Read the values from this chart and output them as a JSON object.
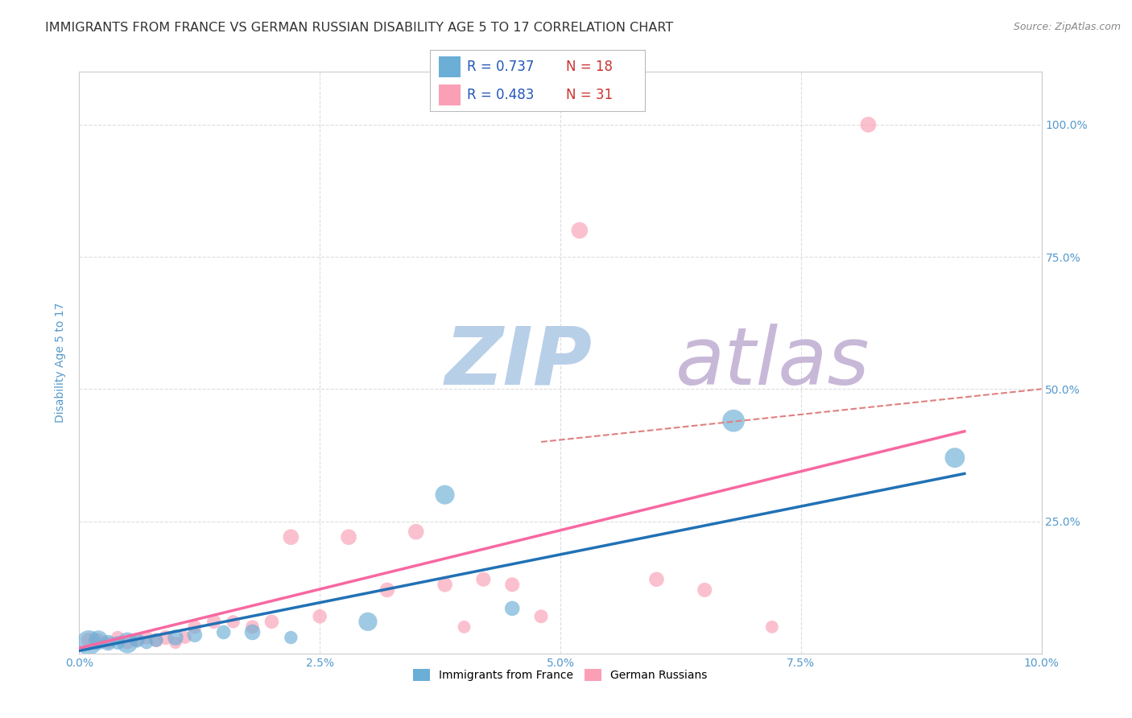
{
  "title": "IMMIGRANTS FROM FRANCE VS GERMAN RUSSIAN DISABILITY AGE 5 TO 17 CORRELATION CHART",
  "source": "Source: ZipAtlas.com",
  "ylabel": "Disability Age 5 to 17",
  "xlim": [
    0.0,
    0.1
  ],
  "ylim": [
    0.0,
    1.1
  ],
  "xtick_labels": [
    "0.0%",
    "2.5%",
    "5.0%",
    "7.5%",
    "10.0%"
  ],
  "xtick_vals": [
    0.0,
    0.025,
    0.05,
    0.075,
    0.1
  ],
  "ytick_labels": [
    "25.0%",
    "50.0%",
    "75.0%",
    "100.0%"
  ],
  "ytick_vals": [
    0.25,
    0.5,
    0.75,
    1.0
  ],
  "blue_color": "#6baed6",
  "pink_color": "#fa9fb5",
  "blue_line_color": "#2171b5",
  "pink_line_color": "#f768a1",
  "legend_r_blue": "R = 0.737",
  "legend_n_blue": "N = 18",
  "legend_r_pink": "R = 0.483",
  "legend_n_pink": "N = 31",
  "blue_scatter_x": [
    0.001,
    0.002,
    0.003,
    0.004,
    0.005,
    0.006,
    0.007,
    0.008,
    0.01,
    0.012,
    0.015,
    0.018,
    0.022,
    0.03,
    0.038,
    0.045,
    0.068,
    0.091
  ],
  "blue_scatter_y": [
    0.02,
    0.025,
    0.02,
    0.02,
    0.02,
    0.025,
    0.02,
    0.025,
    0.03,
    0.035,
    0.04,
    0.04,
    0.03,
    0.06,
    0.3,
    0.085,
    0.44,
    0.37
  ],
  "blue_scatter_s": [
    500,
    300,
    200,
    150,
    350,
    180,
    130,
    150,
    200,
    180,
    160,
    200,
    140,
    280,
    300,
    180,
    400,
    320
  ],
  "pink_scatter_x": [
    0.001,
    0.002,
    0.003,
    0.004,
    0.005,
    0.006,
    0.007,
    0.008,
    0.009,
    0.01,
    0.011,
    0.012,
    0.014,
    0.016,
    0.018,
    0.02,
    0.022,
    0.025,
    0.028,
    0.032,
    0.035,
    0.038,
    0.04,
    0.042,
    0.045,
    0.048,
    0.052,
    0.06,
    0.065,
    0.072,
    0.082
  ],
  "pink_scatter_y": [
    0.025,
    0.025,
    0.02,
    0.03,
    0.02,
    0.025,
    0.03,
    0.025,
    0.03,
    0.02,
    0.03,
    0.05,
    0.06,
    0.06,
    0.05,
    0.06,
    0.22,
    0.07,
    0.22,
    0.12,
    0.23,
    0.13,
    0.05,
    0.14,
    0.13,
    0.07,
    0.8,
    0.14,
    0.12,
    0.05,
    1.0
  ],
  "pink_scatter_s": [
    180,
    150,
    120,
    140,
    130,
    140,
    150,
    160,
    170,
    120,
    130,
    150,
    160,
    140,
    150,
    160,
    200,
    160,
    200,
    180,
    200,
    180,
    130,
    170,
    170,
    150,
    220,
    180,
    170,
    130,
    200
  ],
  "blue_line_x": [
    0.0,
    0.092
  ],
  "blue_line_y": [
    0.005,
    0.34
  ],
  "pink_line_x": [
    0.0,
    0.092
  ],
  "pink_line_y": [
    0.01,
    0.42
  ],
  "dashed_line_x": [
    0.048,
    0.1
  ],
  "dashed_line_y": [
    0.4,
    0.5
  ],
  "dashed_color": "#e08080",
  "watermark_zip": "ZIP",
  "watermark_atlas": "atlas",
  "watermark_color_zip": "#b8cfe8",
  "watermark_color_atlas": "#c8b8d8",
  "background_color": "#ffffff",
  "grid_color": "#dddddd",
  "axis_label_color": "#5599cc",
  "title_color": "#333333",
  "title_fontsize": 11.5,
  "label_fontsize": 10,
  "tick_fontsize": 10,
  "legend_fontsize": 12
}
